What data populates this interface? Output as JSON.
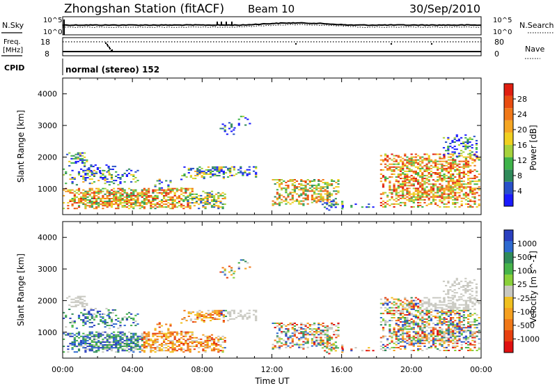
{
  "header": {
    "station": "Zhongshan Station (fitACF)",
    "beam": "Beam 10",
    "date": "30/Sep/2010"
  },
  "summary": {
    "nsky_label": "N.Sky",
    "nsky_ticks": [
      "10^5",
      "10^0"
    ],
    "nsearch_label": "N.Search",
    "nsearch_ticks": [
      "10^5",
      "10^0"
    ],
    "freq_label": "Freq.",
    "freq_unit": "[MHz]",
    "freq_ticks": [
      "18",
      "8"
    ],
    "nave_label": "Nave",
    "nave_ticks": [
      "80",
      "0"
    ],
    "cpid_label": "CPID",
    "cpid_text": "normal (stereo) 152"
  },
  "chart_data": [
    {
      "type": "heatmap",
      "name": "power",
      "ylabel": "Slant Range [km]",
      "xlabel": "",
      "yticks": [
        "1000",
        "2000",
        "3000",
        "4000"
      ],
      "ylim": [
        180,
        4500
      ],
      "xlim_hours": [
        0,
        24
      ],
      "colorbar_label": "Power [dB]",
      "colorbar_ticks": [
        "4",
        "8",
        "12",
        "16",
        "20",
        "24",
        "28"
      ],
      "colors": [
        "#1a1aff",
        "#2850c8",
        "#2f8a5a",
        "#3fb34a",
        "#a6d23c",
        "#f0d020",
        "#f5a623",
        "#f07818",
        "#e84c10",
        "#e01e10"
      ]
    },
    {
      "type": "heatmap",
      "name": "velocity",
      "ylabel": "Slant Range [km]",
      "xlabel": "Time UT",
      "yticks": [
        "1000",
        "2000",
        "3000",
        "4000"
      ],
      "ylim": [
        180,
        4500
      ],
      "xlim_hours": [
        0,
        24
      ],
      "xticks": [
        "00:00",
        "04:00",
        "08:00",
        "12:00",
        "16:00",
        "20:00",
        "00:00"
      ],
      "colorbar_label": "Velocity [m s^-1]",
      "colorbar_ticks": [
        "1000",
        "500",
        "100",
        "25",
        "-25",
        "-100",
        "-500",
        "-1000"
      ],
      "colors": [
        "#2a3fbf",
        "#2e6ad0",
        "#2f8a5a",
        "#46b34a",
        "#8ad03a",
        "#c8c8c0",
        "#f0c020",
        "#f5a020",
        "#f07818",
        "#e84010",
        "#e01010"
      ]
    }
  ]
}
